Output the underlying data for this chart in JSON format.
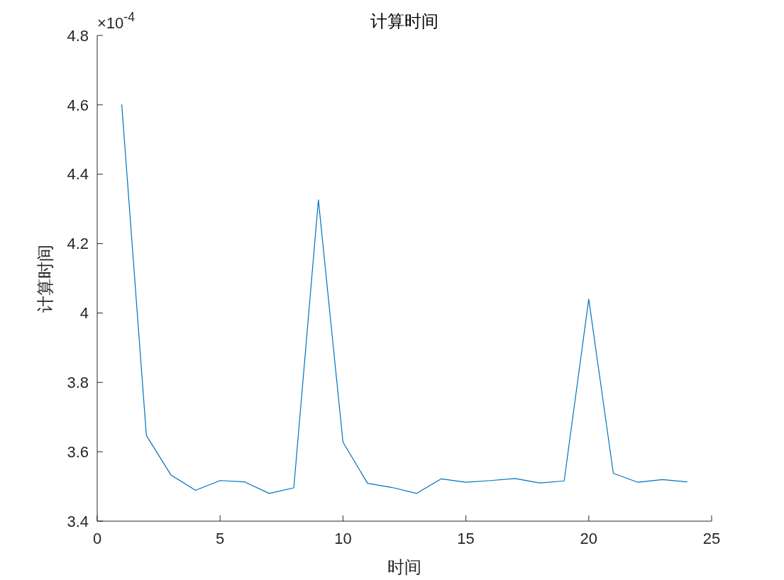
{
  "chart_data": {
    "type": "line",
    "title": "计算时间",
    "xlabel": "时间",
    "ylabel": "计算时间",
    "annotations": [
      "×10$^{-4}$"
    ],
    "x": [
      1,
      2,
      3,
      4,
      5,
      6,
      7,
      8,
      9,
      10,
      11,
      12,
      13,
      14,
      15,
      16,
      17,
      18,
      19,
      20,
      21,
      22,
      23,
      24
    ],
    "series": [
      {
        "color": "#0072bd",
        "values": [
          4.6,
          3.647,
          3.533,
          3.489,
          3.517,
          3.513,
          3.48,
          3.496,
          4.326,
          3.628,
          3.509,
          3.497,
          3.48,
          3.522,
          3.512,
          3.517,
          3.523,
          3.51,
          3.516,
          4.04,
          3.538,
          3.512,
          3.52,
          3.513
        ]
      }
    ],
    "xlim": [
      0,
      25
    ],
    "xticks": [
      0,
      5,
      10,
      15,
      20,
      25
    ],
    "ylim": [
      3.4,
      4.8
    ],
    "yticks": [
      3.4,
      3.6,
      3.8,
      4,
      4.2,
      4.4,
      4.6,
      4.8
    ]
  }
}
